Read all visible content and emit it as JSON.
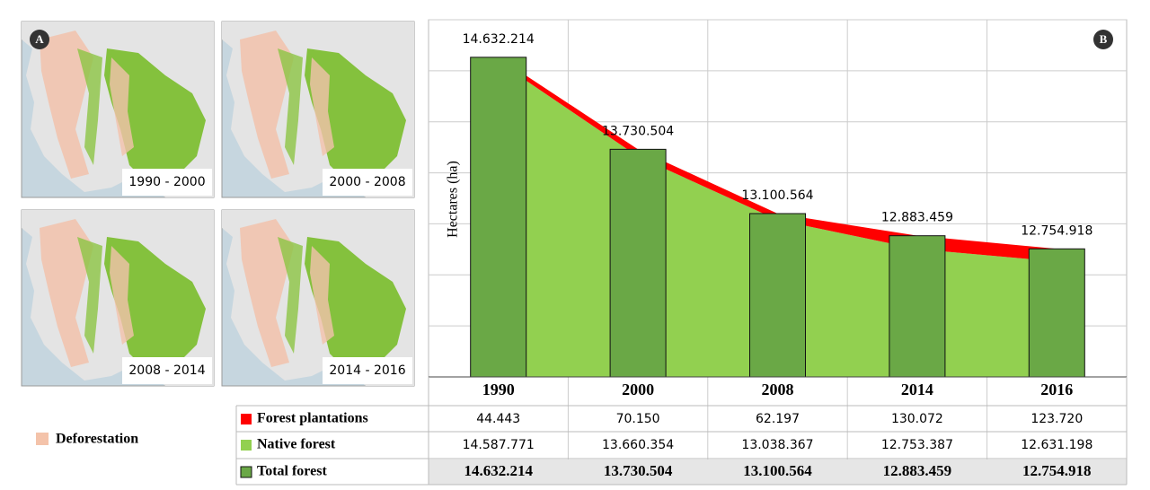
{
  "panels": [
    "A",
    "B"
  ],
  "maps": [
    {
      "caption": "1990 - 2000"
    },
    {
      "caption": "2000 - 2008"
    },
    {
      "caption": "2008 - 2014"
    },
    {
      "caption": "2014 - 2016"
    }
  ],
  "map_legend": {
    "label": "Deforestation",
    "color": "#f4c3aa"
  },
  "chart_data": {
    "type": "bar",
    "y_label": "Hectares (ha)",
    "categories": [
      "1990",
      "2000",
      "2008",
      "2014",
      "2016"
    ],
    "series": [
      {
        "name": "Forest plantations",
        "color": "#ff0000",
        "type": "area",
        "values": [
          44443,
          70150,
          62197,
          130072,
          123720
        ],
        "value_labels": [
          "44.443",
          "70.150",
          "62.197",
          "130.072",
          "123.720"
        ]
      },
      {
        "name": "Native forest",
        "color": "#92d050",
        "type": "area",
        "values": [
          14587771,
          13660354,
          13038367,
          12753387,
          12631198
        ],
        "value_labels": [
          "14.587.771",
          "13.660.354",
          "13.038.367",
          "12.753.387",
          "12.631.198"
        ]
      },
      {
        "name": "Total forest",
        "color": "#6aa846",
        "type": "bar",
        "values": [
          14632214,
          13730504,
          13100564,
          12883459,
          12754918
        ],
        "value_labels": [
          "14.632.214",
          "13.730.504",
          "13.100.564",
          "12.883.459",
          "12.754.918"
        ]
      }
    ],
    "ylim": [
      11500000,
      15000000
    ],
    "ygrid": [
      11500000,
      12000000,
      12500000,
      13000000,
      13500000,
      14000000,
      14500000,
      15000000
    ],
    "grid": true
  }
}
